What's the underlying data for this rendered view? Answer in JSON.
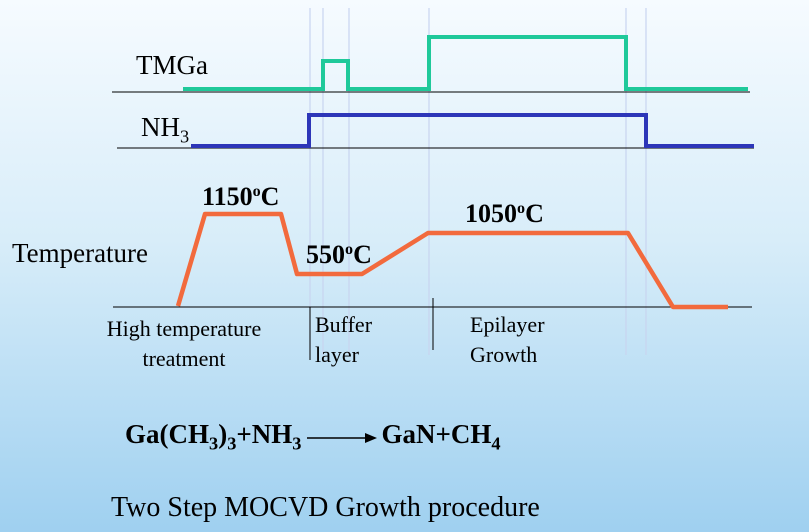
{
  "signals": {
    "tmga_label": "TMGa",
    "nh3_label_main": "NH",
    "nh3_label_sub": "3"
  },
  "temperature": {
    "label": "Temperature",
    "t1150_value": "1150",
    "t550_value": "550",
    "t1050_value": "1050",
    "deg_sup": "o",
    "unit": "C"
  },
  "phases": {
    "high_temp_line1": "High temperature",
    "high_temp_line2": "treatment",
    "buffer_line1": "Buffer",
    "buffer_line2": "layer",
    "epi_line1": "Epilayer",
    "epi_line2": "Growth"
  },
  "equation": {
    "reactant1_a": "Ga(CH",
    "reactant1_sub": "3",
    "reactant1_b": ")",
    "reactant1_sub2": "3",
    "plus1": "+NH",
    "nh3_sub": "3",
    "product": "GaN+CH",
    "ch4_sub": "4"
  },
  "caption": "Two Step MOCVD Growth procedure",
  "colors": {
    "tmga_line": "#1fc99a",
    "nh3_line": "#2d36b8",
    "temperature_line": "#f26a3d",
    "baseline": "#000000",
    "guide": "#c8d4f0"
  }
}
